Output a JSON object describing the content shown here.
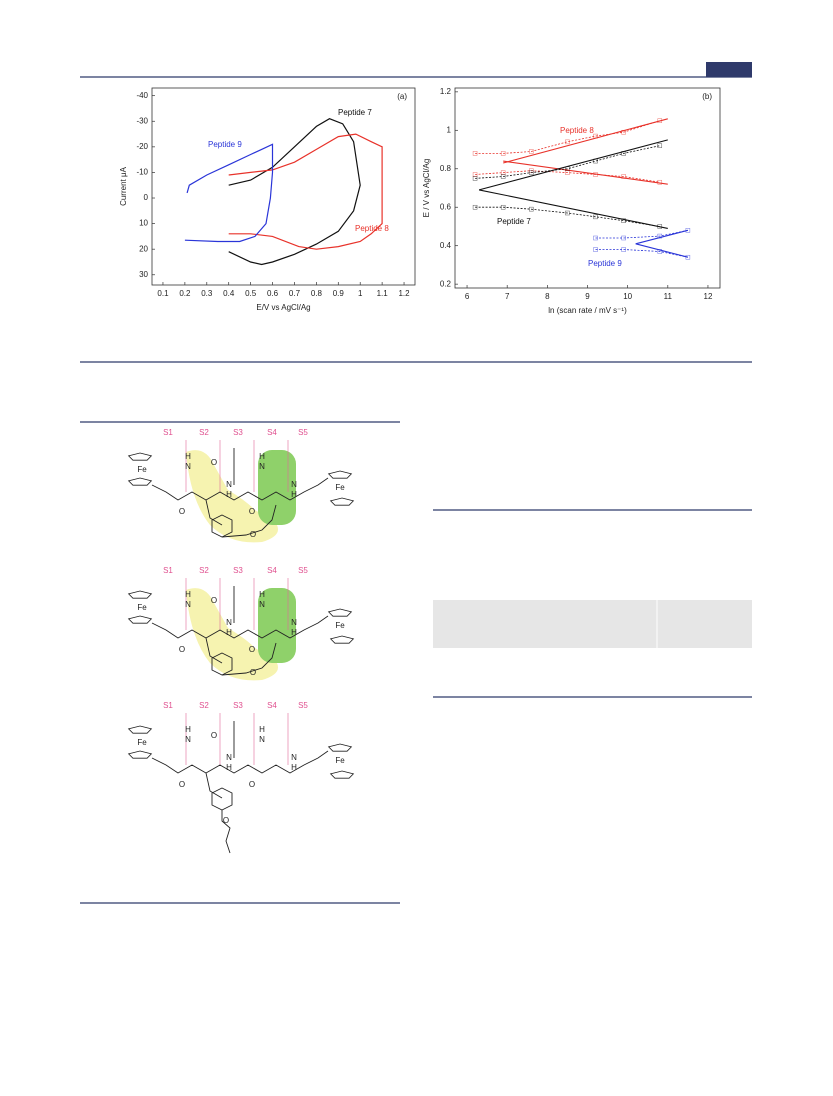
{
  "header": {
    "box": true
  },
  "charts": [
    {
      "chart_data": {
        "type": "line",
        "panel": "(a)",
        "x_label": "E/V vs AgCl/Ag",
        "y_label": "Current μA",
        "inverted_y": true,
        "xlim": [
          0.05,
          1.25
        ],
        "xticks": [
          0.1,
          0.2,
          0.3,
          0.4,
          0.5,
          0.6,
          0.7,
          0.8,
          0.9,
          1.0,
          1.1,
          1.2
        ],
        "ylim": [
          -43,
          34
        ],
        "yticks": [
          -40,
          -30,
          -20,
          -10,
          0,
          10,
          20,
          30
        ],
        "series": [
          {
            "name": "Peptide 7",
            "color": "#111111",
            "x": [
              0.4,
              0.5,
              0.6,
              0.7,
              0.8,
              0.86,
              0.92,
              0.97,
              1.0,
              0.97,
              0.9,
              0.8,
              0.7,
              0.6,
              0.55,
              0.5,
              0.4
            ],
            "values": [
              -5,
              -7,
              -12,
              -20,
              -28,
              -31,
              -29,
              -22,
              -5,
              5,
              13,
              18,
              22,
              25,
              26,
              25,
              21
            ]
          },
          {
            "name": "Peptide 8",
            "color": "#e8322a",
            "x": [
              0.4,
              0.5,
              0.6,
              0.7,
              0.8,
              0.9,
              0.98,
              1.05,
              1.1,
              1.1,
              1.1,
              1.05,
              1.0,
              0.9,
              0.8,
              0.72,
              0.6,
              0.5,
              0.4
            ],
            "values": [
              -9,
              -10,
              -11,
              -14,
              -19,
              -24,
              -25,
              -22,
              -20,
              0,
              10,
              14,
              17,
              19,
              20,
              19,
              15,
              14,
              14
            ]
          },
          {
            "name": "Peptide 9",
            "color": "#2a35d8",
            "x": [
              0.21,
              0.22,
              0.3,
              0.4,
              0.5,
              0.55,
              0.6,
              0.6,
              0.59,
              0.57,
              0.52,
              0.45,
              0.35,
              0.2
            ],
            "values": [
              -2,
              -5,
              -9,
              -13,
              -17,
              -19,
              -21,
              -10,
              0,
              10,
              15,
              17,
              17,
              16.5
            ]
          }
        ]
      }
    },
    {
      "chart_data": {
        "type": "scatter",
        "panel": "(b)",
        "x_label": "ln (scan rate / mV s⁻¹)",
        "y_label": "E / V vs AgCl/Ag",
        "xlim": [
          5.7,
          12.3
        ],
        "xticks": [
          6,
          7,
          8,
          9,
          10,
          11,
          12
        ],
        "ylim": [
          0.18,
          1.22
        ],
        "yticks": [
          0.2,
          0.4,
          0.6,
          0.8,
          1.0,
          1.2
        ],
        "series": [
          {
            "name": "Peptide 8",
            "color": "#e8322a",
            "x": [
              6.2,
              6.9,
              7.6,
              8.5,
              9.2,
              9.9,
              10.8
            ],
            "anodic": [
              0.88,
              0.88,
              0.89,
              0.94,
              0.97,
              0.99,
              1.05
            ],
            "cathodic": [
              0.77,
              0.78,
              0.79,
              0.78,
              0.77,
              0.76,
              0.73
            ],
            "fit": {
              "x": [
                6.9,
                11
              ],
              "anodic": [
                0.83,
                1.06
              ],
              "cathodic": [
                0.84,
                0.72
              ]
            }
          },
          {
            "name": "Peptide 7",
            "color": "#111111",
            "x": [
              6.2,
              6.9,
              7.6,
              8.5,
              9.2,
              9.9,
              10.8
            ],
            "anodic": [
              0.75,
              0.76,
              0.78,
              0.8,
              0.84,
              0.88,
              0.92
            ],
            "cathodic": [
              0.6,
              0.6,
              0.59,
              0.57,
              0.55,
              0.53,
              0.5
            ],
            "fit": {
              "x": [
                6.3,
                11
              ],
              "anodic": [
                0.69,
                0.95
              ],
              "cathodic": [
                0.69,
                0.49
              ]
            }
          },
          {
            "name": "Peptide 9",
            "color": "#2a35d8",
            "x": [
              9.2,
              9.9,
              10.8,
              11.5
            ],
            "anodic": [
              0.44,
              0.44,
              0.45,
              0.48
            ],
            "cathodic": [
              0.38,
              0.38,
              0.37,
              0.34
            ],
            "fit": {
              "x": [
                10.2,
                11.5
              ],
              "anodic": [
                0.41,
                0.48
              ],
              "cathodic": [
                0.41,
                0.34
              ]
            }
          }
        ]
      }
    }
  ],
  "structures": [
    {
      "labels": [
        "S1",
        "S2",
        "S3",
        "S4",
        "S5"
      ],
      "atoms": [
        "Fe",
        "H",
        "N",
        "O",
        "N",
        "H",
        "O",
        "H",
        "N",
        "O",
        "N",
        "H",
        "Fe",
        "O"
      ]
    },
    {
      "labels": [
        "S1",
        "S2",
        "S3",
        "S4",
        "S5"
      ],
      "atoms": [
        "Fe",
        "H",
        "N",
        "O",
        "N",
        "H",
        "O",
        "H",
        "N",
        "O",
        "N",
        "H",
        "Fe",
        "O"
      ]
    },
    {
      "labels": [
        "S1",
        "S2",
        "S3",
        "S4",
        "S5"
      ],
      "atoms": [
        "Fe",
        "H",
        "N",
        "O",
        "N",
        "H",
        "O",
        "H",
        "N",
        "O",
        "N",
        "H",
        "Fe",
        "O"
      ]
    }
  ]
}
